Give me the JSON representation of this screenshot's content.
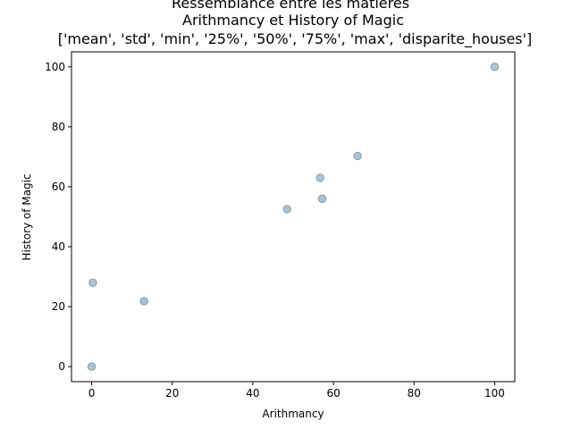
{
  "chart_data": {
    "type": "scatter",
    "title_lines": [
      "Ressemblance entre les matieres",
      "Arithmancy et History of Magic",
      "['mean', 'std', 'min', '25%', '50%', '75%', 'max', 'disparite_houses']"
    ],
    "xlabel": "Arithmancy",
    "ylabel": "History of Magic",
    "xlim": [
      -5,
      105
    ],
    "ylim": [
      -5,
      105
    ],
    "xticks": [
      0,
      20,
      40,
      60,
      80,
      100
    ],
    "yticks": [
      0,
      20,
      40,
      60,
      80,
      100
    ],
    "grid": false,
    "marker_color": "#a9c4d8",
    "marker_edge_color": "#7f9bb0",
    "points": [
      {
        "x": 48.5,
        "y": 52.5
      },
      {
        "x": 0.3,
        "y": 28.0
      },
      {
        "x": 0.0,
        "y": 0.0
      },
      {
        "x": 13.0,
        "y": 21.8
      },
      {
        "x": 56.7,
        "y": 63.0
      },
      {
        "x": 66.0,
        "y": 70.3
      },
      {
        "x": 100.0,
        "y": 100.0
      },
      {
        "x": 57.2,
        "y": 56.0
      }
    ]
  }
}
